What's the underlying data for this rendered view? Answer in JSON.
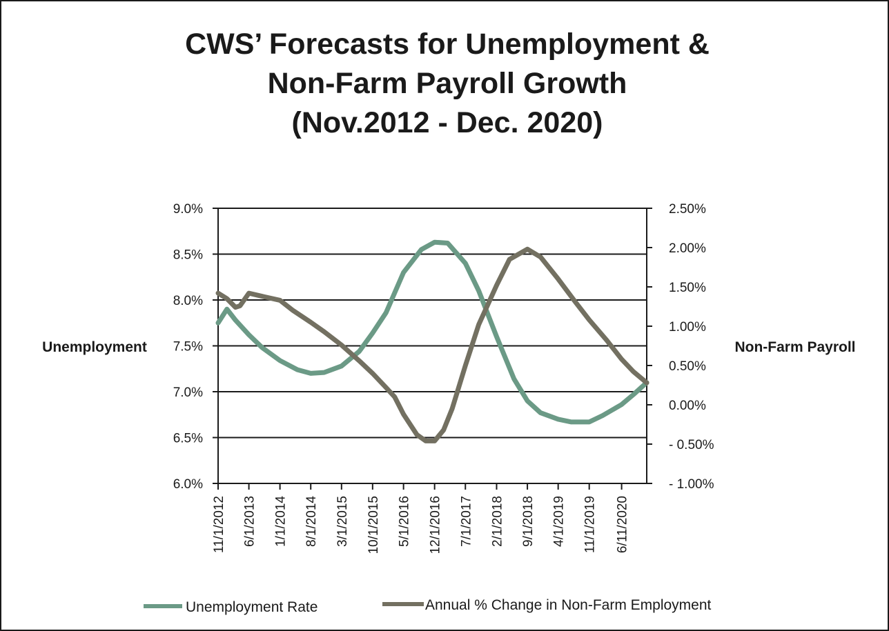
{
  "colors": {
    "unemployment": "#6b9a86",
    "payroll": "#737061",
    "axis": "#1a1a1a"
  },
  "chart_data": {
    "type": "line",
    "title": [
      "CWS’ Forecasts for Unemployment &",
      "Non-Farm Payroll Growth",
      "(Nov.2012 - Dec. 2020)"
    ],
    "left_axis": {
      "label": "Unemployment",
      "ylim": [
        6.0,
        9.0
      ],
      "ticks": [
        "6.0%",
        "6.5%",
        "7.0%",
        "7.5%",
        "8.0%",
        "8.5%",
        "9.0%"
      ],
      "tick_values": [
        6.0,
        6.5,
        7.0,
        7.5,
        8.0,
        8.5,
        9.0
      ]
    },
    "right_axis": {
      "label": "Non-Farm Payroll",
      "ylim": [
        -1.0,
        2.5
      ],
      "ticks": [
        "- 1.00%",
        "- 0.50%",
        "0.00%",
        "0.50%",
        "1.00%",
        "1.50%",
        "2.00%",
        "2.50%"
      ],
      "tick_values": [
        -1.0,
        -0.5,
        0.0,
        0.5,
        1.0,
        1.5,
        2.0,
        2.5
      ]
    },
    "x_axis": {
      "start": "2012-11-01",
      "end": "2020-12-01",
      "tick_labels": [
        "11/1/2012",
        "6/1/2013",
        "1/1/2014",
        "8/1/2014",
        "3/1/2015",
        "10/1/2015",
        "5/1/2016",
        "12/1/2016",
        "7/1/2017",
        "2/1/2018",
        "9/1/2018",
        "4/1/2019",
        "11/1/2019",
        "6/11/2020"
      ],
      "tick_dates": [
        "2012-11-01",
        "2013-06-01",
        "2014-01-01",
        "2014-08-01",
        "2015-03-01",
        "2015-10-01",
        "2016-05-01",
        "2016-12-01",
        "2017-07-01",
        "2018-02-01",
        "2018-09-01",
        "2019-04-01",
        "2019-11-01",
        "2020-06-11"
      ]
    },
    "grid": "horizontal",
    "legend_position": "bottom",
    "series": [
      {
        "name": "Unemployment Rate",
        "axis": "left",
        "points": [
          [
            "2012-11-01",
            7.75
          ],
          [
            "2013-01-01",
            7.9
          ],
          [
            "2013-03-01",
            7.78
          ],
          [
            "2013-06-01",
            7.62
          ],
          [
            "2013-09-01",
            7.48
          ],
          [
            "2014-01-01",
            7.34
          ],
          [
            "2014-05-01",
            7.24
          ],
          [
            "2014-08-01",
            7.2
          ],
          [
            "2014-11-01",
            7.21
          ],
          [
            "2015-03-01",
            7.28
          ],
          [
            "2015-07-01",
            7.44
          ],
          [
            "2015-10-01",
            7.64
          ],
          [
            "2016-01-01",
            7.86
          ],
          [
            "2016-05-01",
            8.3
          ],
          [
            "2016-09-01",
            8.55
          ],
          [
            "2016-12-01",
            8.63
          ],
          [
            "2017-03-01",
            8.62
          ],
          [
            "2017-07-01",
            8.4
          ],
          [
            "2017-10-01",
            8.1
          ],
          [
            "2018-02-01",
            7.6
          ],
          [
            "2018-06-01",
            7.14
          ],
          [
            "2018-09-01",
            6.9
          ],
          [
            "2018-12-01",
            6.77
          ],
          [
            "2019-04-01",
            6.7
          ],
          [
            "2019-07-01",
            6.67
          ],
          [
            "2019-11-01",
            6.67
          ],
          [
            "2020-02-01",
            6.74
          ],
          [
            "2020-06-11",
            6.86
          ],
          [
            "2020-09-01",
            6.97
          ],
          [
            "2020-12-01",
            7.1
          ]
        ]
      },
      {
        "name": "Annual % Change in Non-Farm Employment",
        "axis": "right",
        "points": [
          [
            "2012-11-01",
            1.42
          ],
          [
            "2013-01-01",
            1.35
          ],
          [
            "2013-03-01",
            1.24
          ],
          [
            "2013-04-01",
            1.26
          ],
          [
            "2013-06-01",
            1.42
          ],
          [
            "2013-09-01",
            1.38
          ],
          [
            "2014-01-01",
            1.33
          ],
          [
            "2014-04-01",
            1.2
          ],
          [
            "2014-08-01",
            1.05
          ],
          [
            "2014-11-01",
            0.93
          ],
          [
            "2015-03-01",
            0.76
          ],
          [
            "2015-07-01",
            0.56
          ],
          [
            "2015-10-01",
            0.4
          ],
          [
            "2016-01-01",
            0.22
          ],
          [
            "2016-03-01",
            0.1
          ],
          [
            "2016-05-01",
            -0.12
          ],
          [
            "2016-08-01",
            -0.38
          ],
          [
            "2016-10-01",
            -0.46
          ],
          [
            "2016-12-01",
            -0.46
          ],
          [
            "2017-02-01",
            -0.32
          ],
          [
            "2017-04-01",
            -0.05
          ],
          [
            "2017-07-01",
            0.5
          ],
          [
            "2017-10-01",
            1.02
          ],
          [
            "2018-02-01",
            1.52
          ],
          [
            "2018-05-01",
            1.85
          ],
          [
            "2018-09-01",
            1.98
          ],
          [
            "2018-12-01",
            1.88
          ],
          [
            "2019-04-01",
            1.6
          ],
          [
            "2019-08-01",
            1.3
          ],
          [
            "2019-11-01",
            1.08
          ],
          [
            "2020-03-01",
            0.82
          ],
          [
            "2020-06-11",
            0.58
          ],
          [
            "2020-09-01",
            0.42
          ],
          [
            "2020-12-01",
            0.28
          ]
        ]
      }
    ]
  }
}
